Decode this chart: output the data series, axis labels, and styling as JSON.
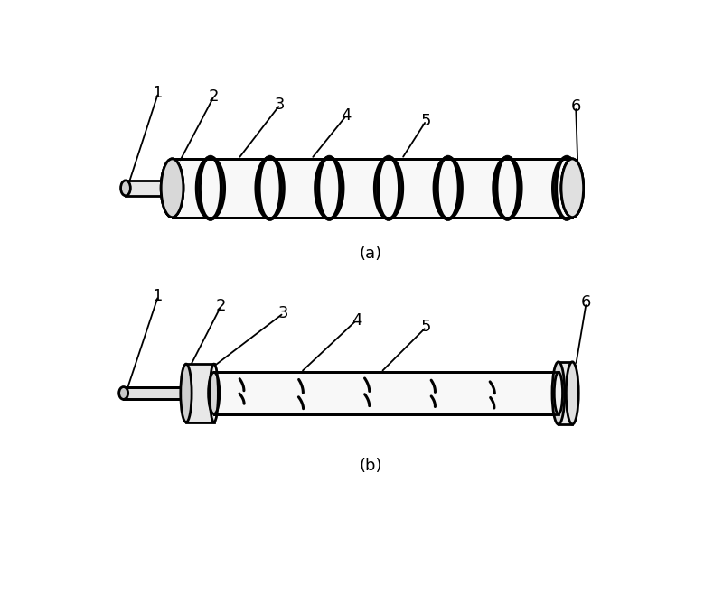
{
  "bg_color": "#ffffff",
  "line_color": "#000000",
  "fig_width": 8.0,
  "fig_height": 6.58,
  "label_a": "(a)",
  "label_b": "(b)",
  "font_size_label": 13,
  "font_size_number": 13,
  "lw_main": 2.0,
  "lw_helix": 2.5
}
